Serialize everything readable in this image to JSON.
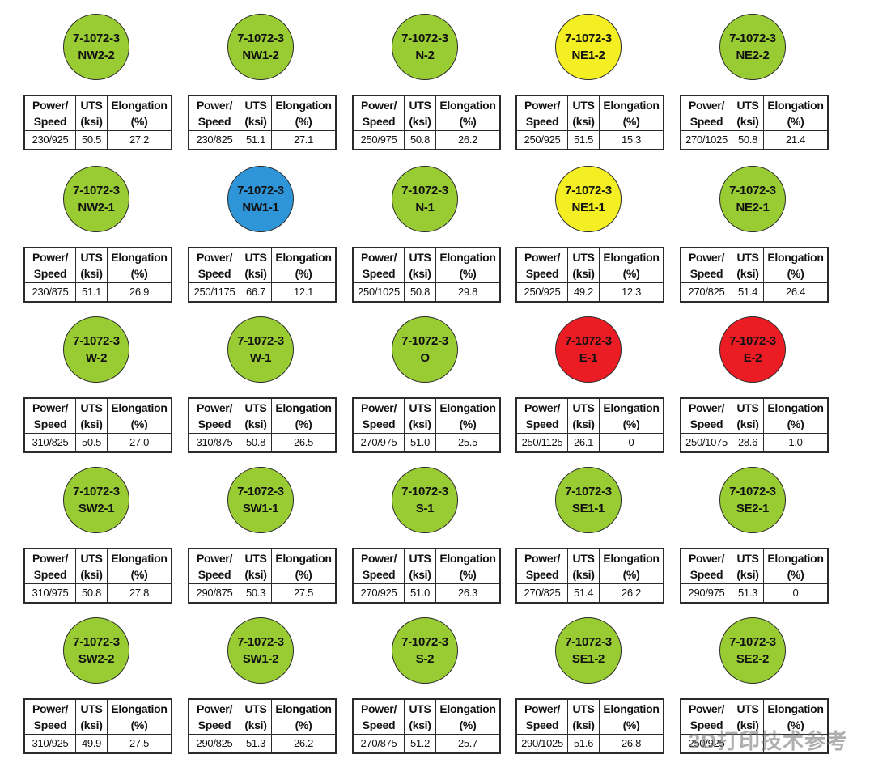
{
  "colors": {
    "green": "#99cc33",
    "yellow": "#f4ef22",
    "blue": "#2e95d8",
    "red": "#ec1c24"
  },
  "table_headers": {
    "power_line1": "Power/",
    "power_line2": "Speed",
    "uts_line1": "UTS",
    "uts_line2": "(ksi)",
    "elong_line1": "Elongation",
    "elong_line2": "(%)"
  },
  "samples": [
    {
      "line1": "7-1072-3",
      "line2": "NW2-2",
      "color": "green",
      "power_speed": "230/925",
      "uts": "50.5",
      "elongation": "27.2"
    },
    {
      "line1": "7-1072-3",
      "line2": "NW1-2",
      "color": "green",
      "power_speed": "230/825",
      "uts": "51.1",
      "elongation": "27.1"
    },
    {
      "line1": "7-1072-3",
      "line2": "N-2",
      "color": "green",
      "power_speed": "250/975",
      "uts": "50.8",
      "elongation": "26.2"
    },
    {
      "line1": "7-1072-3",
      "line2": "NE1-2",
      "color": "yellow",
      "power_speed": "250/925",
      "uts": "51.5",
      "elongation": "15.3"
    },
    {
      "line1": "7-1072-3",
      "line2": "NE2-2",
      "color": "green",
      "power_speed": "270/1025",
      "uts": "50.8",
      "elongation": "21.4"
    },
    {
      "line1": "7-1072-3",
      "line2": "NW2-1",
      "color": "green",
      "power_speed": "230/875",
      "uts": "51.1",
      "elongation": "26.9"
    },
    {
      "line1": "7-1072-3",
      "line2": "NW1-1",
      "color": "blue",
      "power_speed": "250/1175",
      "uts": "66.7",
      "elongation": "12.1"
    },
    {
      "line1": "7-1072-3",
      "line2": "N-1",
      "color": "green",
      "power_speed": "250/1025",
      "uts": "50.8",
      "elongation": "29.8"
    },
    {
      "line1": "7-1072-3",
      "line2": "NE1-1",
      "color": "yellow",
      "power_speed": "250/925",
      "uts": "49.2",
      "elongation": "12.3"
    },
    {
      "line1": "7-1072-3",
      "line2": "NE2-1",
      "color": "green",
      "power_speed": "270/825",
      "uts": "51.4",
      "elongation": "26.4"
    },
    {
      "line1": "7-1072-3",
      "line2": "W-2",
      "color": "green",
      "power_speed": "310/825",
      "uts": "50.5",
      "elongation": "27.0"
    },
    {
      "line1": "7-1072-3",
      "line2": "W-1",
      "color": "green",
      "power_speed": "310/875",
      "uts": "50.8",
      "elongation": "26.5"
    },
    {
      "line1": "7-1072-3",
      "line2": "O",
      "color": "green",
      "power_speed": "270/975",
      "uts": "51.0",
      "elongation": "25.5"
    },
    {
      "line1": "7-1072-3",
      "line2": "E-1",
      "color": "red",
      "power_speed": "250/1125",
      "uts": "26.1",
      "elongation": "0"
    },
    {
      "line1": "7-1072-3",
      "line2": "E-2",
      "color": "red",
      "power_speed": "250/1075",
      "uts": "28.6",
      "elongation": "1.0"
    },
    {
      "line1": "7-1072-3",
      "line2": "SW2-1",
      "color": "green",
      "power_speed": "310/975",
      "uts": "50.8",
      "elongation": "27.8"
    },
    {
      "line1": "7-1072-3",
      "line2": "SW1-1",
      "color": "green",
      "power_speed": "290/875",
      "uts": "50.3",
      "elongation": "27.5"
    },
    {
      "line1": "7-1072-3",
      "line2": "S-1",
      "color": "green",
      "power_speed": "270/925",
      "uts": "51.0",
      "elongation": "26.3"
    },
    {
      "line1": "7-1072-3",
      "line2": "SE1-1",
      "color": "green",
      "power_speed": "270/825",
      "uts": "51.4",
      "elongation": "26.2"
    },
    {
      "line1": "7-1072-3",
      "line2": "SE2-1",
      "color": "green",
      "power_speed": "290/975",
      "uts": "51.3",
      "elongation": "0"
    },
    {
      "line1": "7-1072-3",
      "line2": "SW2-2",
      "color": "green",
      "power_speed": "310/925",
      "uts": "49.9",
      "elongation": "27.5"
    },
    {
      "line1": "7-1072-3",
      "line2": "SW1-2",
      "color": "green",
      "power_speed": "290/825",
      "uts": "51.3",
      "elongation": "26.2"
    },
    {
      "line1": "7-1072-3",
      "line2": "S-2",
      "color": "green",
      "power_speed": "270/875",
      "uts": "51.2",
      "elongation": "25.7"
    },
    {
      "line1": "7-1072-3",
      "line2": "SE1-2",
      "color": "green",
      "power_speed": "290/1025",
      "uts": "51.6",
      "elongation": "26.8"
    },
    {
      "line1": "7-1072-3",
      "line2": "SE2-2",
      "color": "green",
      "power_speed": "250/925",
      "uts": "",
      "elongation": ""
    }
  ],
  "watermark": "3D打印技术参考"
}
